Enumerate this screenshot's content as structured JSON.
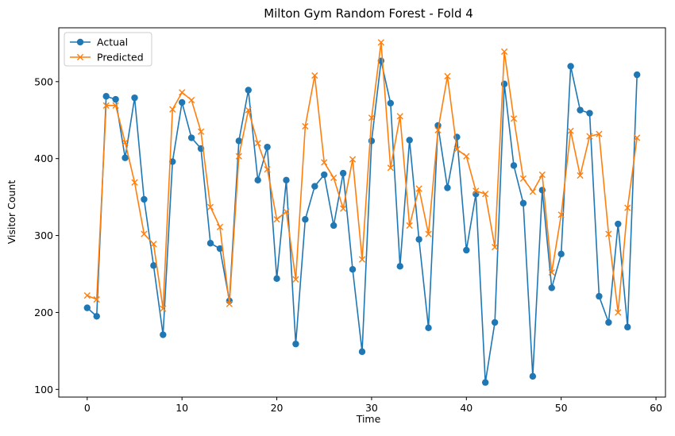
{
  "chart_data": {
    "type": "line",
    "title": "Milton Gym Random Forest - Fold 4",
    "xlabel": "Time",
    "ylabel": "Visitor Count",
    "xlim": [
      -3,
      61
    ],
    "ylim": [
      90,
      570
    ],
    "xticks": [
      0,
      10,
      20,
      30,
      40,
      50,
      60
    ],
    "yticks": [
      100,
      200,
      300,
      400,
      500
    ],
    "grid": false,
    "legend_position": "top-left",
    "x": [
      0,
      1,
      2,
      3,
      4,
      5,
      6,
      7,
      8,
      9,
      10,
      11,
      12,
      13,
      14,
      15,
      16,
      17,
      18,
      19,
      20,
      21,
      22,
      23,
      24,
      25,
      26,
      27,
      28,
      29,
      30,
      31,
      32,
      33,
      34,
      35,
      36,
      37,
      38,
      39,
      40,
      41,
      42,
      43,
      44,
      45,
      46,
      47,
      48,
      49,
      50,
      51,
      52,
      53,
      54,
      55,
      56,
      57,
      58
    ],
    "series": [
      {
        "name": "Actual",
        "color": "#1f77b4",
        "marker": "circle",
        "values": [
          206,
          195,
          481,
          477,
          401,
          479,
          347,
          261,
          171,
          396,
          473,
          427,
          413,
          290,
          283,
          215,
          423,
          489,
          372,
          415,
          244,
          372,
          159,
          321,
          364,
          379,
          313,
          381,
          256,
          149,
          423,
          527,
          472,
          260,
          424,
          295,
          180,
          443,
          362,
          428,
          281,
          354,
          109,
          187,
          497,
          391,
          342,
          117,
          359,
          232,
          276,
          520,
          463,
          459,
          221,
          187,
          315,
          181,
          509
        ]
      },
      {
        "name": "Predicted",
        "color": "#ff7f0e",
        "marker": "x",
        "values": [
          222,
          217,
          469,
          469,
          421,
          369,
          302,
          289,
          205,
          464,
          486,
          476,
          435,
          337,
          311,
          211,
          403,
          463,
          420,
          386,
          321,
          331,
          243,
          442,
          508,
          395,
          375,
          335,
          399,
          269,
          453,
          551,
          388,
          455,
          313,
          361,
          302,
          437,
          507,
          412,
          403,
          358,
          354,
          285,
          539,
          452,
          374,
          357,
          379,
          252,
          327,
          436,
          378,
          429,
          432,
          302,
          200,
          336,
          427
        ]
      }
    ]
  }
}
